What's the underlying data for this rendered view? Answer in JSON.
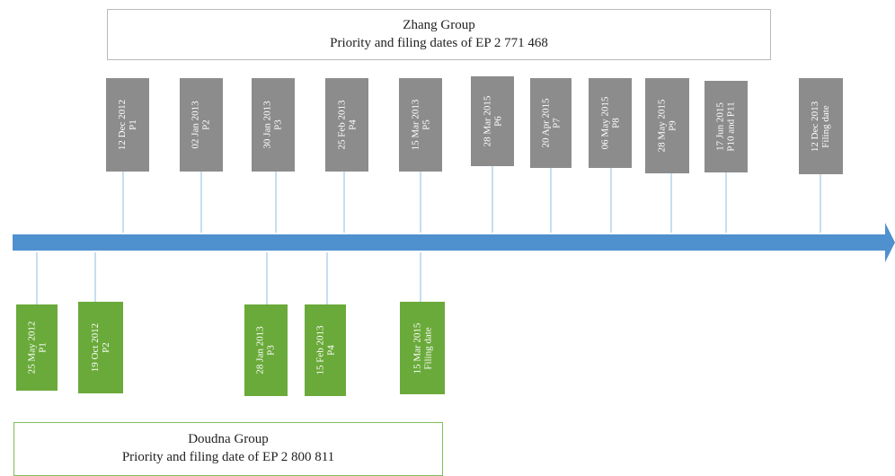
{
  "zhang": {
    "title": "Zhang Group",
    "subtitle": "Priority and filing dates of EP 2 771 468",
    "color": "#8c8c8c",
    "dates": [
      {
        "date": "12 Dec 2012",
        "label": "P1"
      },
      {
        "date": "02 Jan 2013",
        "label": "P2"
      },
      {
        "date": "30 Jan 2013",
        "label": "P3"
      },
      {
        "date": "25 Feb 2013",
        "label": "P4"
      },
      {
        "date": "15 Mar 2013",
        "label": "P5"
      },
      {
        "date": "28 Mar 2015",
        "label": "P6"
      },
      {
        "date": "20 Apr 2015",
        "label": "P7"
      },
      {
        "date": "06 May 2015",
        "label": "P8"
      },
      {
        "date": "28 May 2015",
        "label": "P9"
      },
      {
        "date": "17 Jun 2015",
        "label": "P10 and P11"
      },
      {
        "date": "12 Dec 2013",
        "label": "Filing date"
      }
    ]
  },
  "doudna": {
    "title": "Doudna Group",
    "subtitle": "Priority and filing date of EP 2 800 811",
    "color": "#6aaa3a",
    "dates": [
      {
        "date": "25 May 2012",
        "label": "P1"
      },
      {
        "date": "19 Oct 2012",
        "label": "P2"
      },
      {
        "date": "28 Jan 2013",
        "label": "P3"
      },
      {
        "date": "15 Feb 2013",
        "label": "P4"
      },
      {
        "date": "15 Mar 2015",
        "label": "Filing date"
      }
    ]
  },
  "timeline_color": "#4f90cf",
  "connector_color": "#a9cbe6"
}
